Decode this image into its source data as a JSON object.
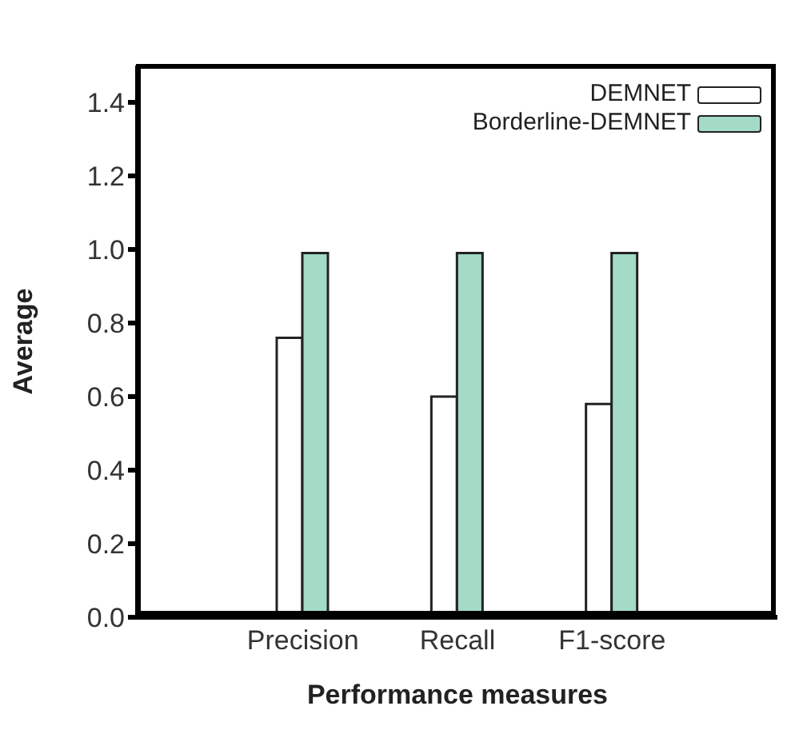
{
  "chart_data": {
    "type": "bar",
    "xlabel": "Performance measures",
    "ylabel": "Average",
    "categories": [
      "Precision",
      "Recall",
      "F1-score"
    ],
    "series": [
      {
        "name": "DEMNET",
        "color": "#ffffff",
        "values": [
          0.76,
          0.6,
          0.58
        ]
      },
      {
        "name": "Borderline-DEMNET",
        "color": "#a3dbc6",
        "values": [
          0.99,
          0.99,
          0.99
        ]
      }
    ],
    "ylim": [
      0,
      1.5
    ],
    "yticks": [
      {
        "value": 0,
        "label": "0.0"
      },
      {
        "value": 0.2,
        "label": "0.2"
      },
      {
        "value": 0.4,
        "label": "0.4"
      },
      {
        "value": 0.6,
        "label": "0.6"
      },
      {
        "value": 0.8,
        "label": "0.8"
      },
      {
        "value": 1,
        "label": "1.0"
      },
      {
        "value": 1.2,
        "label": "1.2"
      },
      {
        "value": 1.4,
        "label": "1.4"
      }
    ],
    "legend": "top right",
    "grid": false
  }
}
